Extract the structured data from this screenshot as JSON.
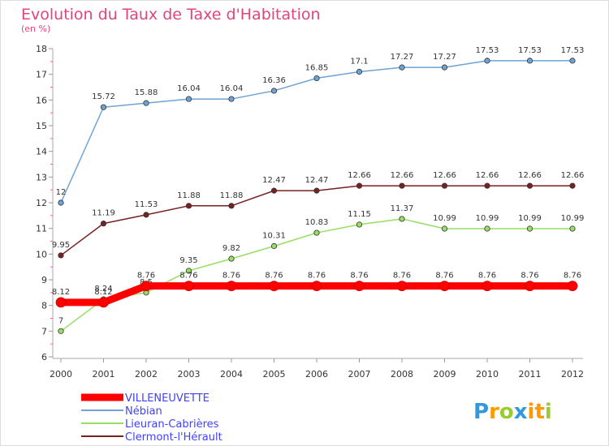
{
  "chart_data": {
    "type": "line",
    "title": "Evolution du Taux de Taxe d'Habitation",
    "subtitle": "(en %)",
    "xlabel": "",
    "ylabel": "",
    "ylim": [
      6,
      18
    ],
    "yticks": [
      "6",
      "7",
      "8",
      "9",
      "10",
      "11",
      "12",
      "13",
      "14",
      "15",
      "16",
      "17",
      "18"
    ],
    "categories": [
      "2000",
      "2001",
      "2002",
      "2003",
      "2004",
      "2005",
      "2006",
      "2007",
      "2008",
      "2009",
      "2010",
      "2011",
      "2012"
    ],
    "series": [
      {
        "name": "VILLENEUVETTE",
        "color": "#ff0000",
        "values": [
          8.12,
          8.12,
          8.76,
          8.76,
          8.76,
          8.76,
          8.76,
          8.76,
          8.76,
          8.76,
          8.76,
          8.76,
          8.76
        ],
        "labels": [
          "8.12",
          "8.12",
          "8.76",
          "8.76",
          "8.76",
          "8.76",
          "8.76",
          "8.76",
          "8.76",
          "8.76",
          "8.76",
          "8.76",
          "8.76"
        ]
      },
      {
        "name": "Nébian",
        "color": "#6fa3d6",
        "values": [
          12,
          15.72,
          15.88,
          16.04,
          16.04,
          16.36,
          16.85,
          17.1,
          17.27,
          17.27,
          17.53,
          17.53,
          17.53
        ],
        "labels": [
          "12",
          "15.72",
          "15.88",
          "16.04",
          "16.04",
          "16.36",
          "16.85",
          "17.1",
          "17.27",
          "17.27",
          "17.53",
          "17.53",
          "17.53"
        ]
      },
      {
        "name": "Lieuran-Cabrières",
        "color": "#99dd66",
        "values": [
          7,
          8.24,
          8.5,
          9.35,
          9.82,
          10.31,
          10.83,
          11.15,
          11.37,
          10.99,
          10.99,
          10.99,
          10.99
        ],
        "labels": [
          "7",
          "8.24",
          "8.5",
          "9.35",
          "9.82",
          "10.31",
          "10.83",
          "11.15",
          "11.37",
          "10.99",
          "10.99",
          "10.99",
          "10.99"
        ]
      },
      {
        "name": "Clermont-l'Hérault",
        "color": "#772222",
        "values": [
          9.95,
          11.19,
          11.53,
          11.88,
          11.88,
          12.47,
          12.47,
          12.66,
          12.66,
          12.66,
          12.66,
          12.66,
          12.66
        ],
        "labels": [
          "9.95",
          "11.19",
          "11.53",
          "11.88",
          "11.88",
          "12.47",
          "12.47",
          "12.66",
          "12.66",
          "12.66",
          "12.66",
          "12.66",
          "12.66"
        ]
      }
    ],
    "legend_position": "bottom-left",
    "grid": false
  },
  "logo": {
    "text": "Proxiti",
    "colors": [
      "#3399dd",
      "#ff9900",
      "#99cc33",
      "#3399dd",
      "#ff9900",
      "#ff9900",
      "#99cc33"
    ]
  }
}
